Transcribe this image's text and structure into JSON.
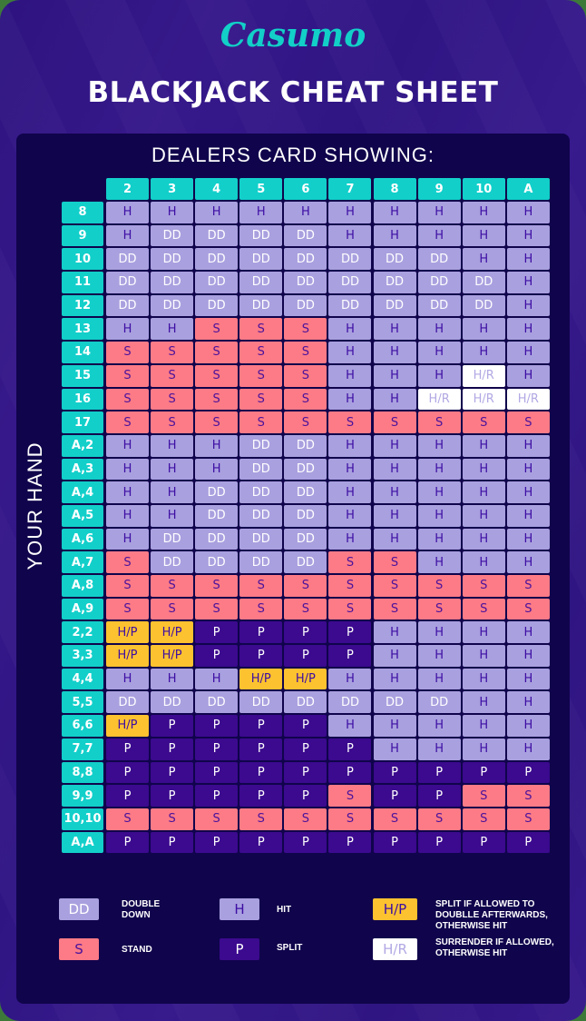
{
  "brand": {
    "logo_text": "Casumo",
    "accent_color": "#12cfca"
  },
  "title": "BLACKJACK CHEAT SHEET",
  "chart": {
    "column_axis_label": "DEALERS CARD SHOWING:",
    "row_axis_label": "YOUR HAND",
    "dealer_cards": [
      "2",
      "3",
      "4",
      "5",
      "6",
      "7",
      "8",
      "9",
      "10",
      "A"
    ],
    "rows": [
      {
        "hand": "8",
        "actions": [
          "H",
          "H",
          "H",
          "H",
          "H",
          "H",
          "H",
          "H",
          "H",
          "H"
        ]
      },
      {
        "hand": "9",
        "actions": [
          "H",
          "DD",
          "DD",
          "DD",
          "DD",
          "H",
          "H",
          "H",
          "H",
          "H"
        ]
      },
      {
        "hand": "10",
        "actions": [
          "DD",
          "DD",
          "DD",
          "DD",
          "DD",
          "DD",
          "DD",
          "DD",
          "H",
          "H"
        ]
      },
      {
        "hand": "11",
        "actions": [
          "DD",
          "DD",
          "DD",
          "DD",
          "DD",
          "DD",
          "DD",
          "DD",
          "DD",
          "H"
        ]
      },
      {
        "hand": "12",
        "actions": [
          "DD",
          "DD",
          "DD",
          "DD",
          "DD",
          "DD",
          "DD",
          "DD",
          "DD",
          "H"
        ]
      },
      {
        "hand": "13",
        "actions": [
          "H",
          "H",
          "S",
          "S",
          "S",
          "H",
          "H",
          "H",
          "H",
          "H"
        ]
      },
      {
        "hand": "14",
        "actions": [
          "S",
          "S",
          "S",
          "S",
          "S",
          "H",
          "H",
          "H",
          "H",
          "H"
        ]
      },
      {
        "hand": "15",
        "actions": [
          "S",
          "S",
          "S",
          "S",
          "S",
          "H",
          "H",
          "H",
          "H/R",
          "H"
        ]
      },
      {
        "hand": "16",
        "actions": [
          "S",
          "S",
          "S",
          "S",
          "S",
          "H",
          "H",
          "H/R",
          "H/R",
          "H/R"
        ]
      },
      {
        "hand": "17",
        "actions": [
          "S",
          "S",
          "S",
          "S",
          "S",
          "S",
          "S",
          "S",
          "S",
          "S"
        ]
      },
      {
        "hand": "A,2",
        "actions": [
          "H",
          "H",
          "H",
          "DD",
          "DD",
          "H",
          "H",
          "H",
          "H",
          "H"
        ]
      },
      {
        "hand": "A,3",
        "actions": [
          "H",
          "H",
          "H",
          "DD",
          "DD",
          "H",
          "H",
          "H",
          "H",
          "H"
        ]
      },
      {
        "hand": "A,4",
        "actions": [
          "H",
          "H",
          "DD",
          "DD",
          "DD",
          "H",
          "H",
          "H",
          "H",
          "H"
        ]
      },
      {
        "hand": "A,5",
        "actions": [
          "H",
          "H",
          "DD",
          "DD",
          "DD",
          "H",
          "H",
          "H",
          "H",
          "H"
        ]
      },
      {
        "hand": "A,6",
        "actions": [
          "H",
          "DD",
          "DD",
          "DD",
          "DD",
          "H",
          "H",
          "H",
          "H",
          "H"
        ]
      },
      {
        "hand": "A,7",
        "actions": [
          "S",
          "DD",
          "DD",
          "DD",
          "DD",
          "S",
          "S",
          "H",
          "H",
          "H"
        ]
      },
      {
        "hand": "A,8",
        "actions": [
          "S",
          "S",
          "S",
          "S",
          "S",
          "S",
          "S",
          "S",
          "S",
          "S"
        ]
      },
      {
        "hand": "A,9",
        "actions": [
          "S",
          "S",
          "S",
          "S",
          "S",
          "S",
          "S",
          "S",
          "S",
          "S"
        ]
      },
      {
        "hand": "2,2",
        "actions": [
          "H/P",
          "H/P",
          "P",
          "P",
          "P",
          "P",
          "H",
          "H",
          "H",
          "H"
        ]
      },
      {
        "hand": "3,3",
        "actions": [
          "H/P",
          "H/P",
          "P",
          "P",
          "P",
          "P",
          "H",
          "H",
          "H",
          "H"
        ]
      },
      {
        "hand": "4,4",
        "actions": [
          "H",
          "H",
          "H",
          "H/P",
          "H/P",
          "H",
          "H",
          "H",
          "H",
          "H"
        ]
      },
      {
        "hand": "5,5",
        "actions": [
          "DD",
          "DD",
          "DD",
          "DD",
          "DD",
          "DD",
          "DD",
          "DD",
          "H",
          "H"
        ]
      },
      {
        "hand": "6,6",
        "actions": [
          "H/P",
          "P",
          "P",
          "P",
          "P",
          "H",
          "H",
          "H",
          "H",
          "H"
        ]
      },
      {
        "hand": "7,7",
        "actions": [
          "P",
          "P",
          "P",
          "P",
          "P",
          "P",
          "H",
          "H",
          "H",
          "H"
        ]
      },
      {
        "hand": "8,8",
        "actions": [
          "P",
          "P",
          "P",
          "P",
          "P",
          "P",
          "P",
          "P",
          "P",
          "P"
        ]
      },
      {
        "hand": "9,9",
        "actions": [
          "P",
          "P",
          "P",
          "P",
          "P",
          "S",
          "P",
          "P",
          "S",
          "S"
        ]
      },
      {
        "hand": "10,10",
        "actions": [
          "S",
          "S",
          "S",
          "S",
          "S",
          "S",
          "S",
          "S",
          "S",
          "S"
        ]
      },
      {
        "hand": "A,A",
        "actions": [
          "P",
          "P",
          "P",
          "P",
          "P",
          "P",
          "P",
          "P",
          "P",
          "P"
        ]
      }
    ]
  },
  "legend": [
    {
      "code": "DD",
      "label_lines": [
        "DOUBLE",
        "DOWN"
      ],
      "color": "#a9a0df"
    },
    {
      "code": "S",
      "label_lines": [
        "STAND"
      ],
      "color": "#fd7b86"
    },
    {
      "code": "H",
      "label_lines": [
        "HIT"
      ],
      "color": "#a9a0df"
    },
    {
      "code": "P",
      "label_lines": [
        "SPLIT"
      ],
      "color": "#3b0a8e"
    },
    {
      "code": "H/P",
      "label_lines": [
        "SPLIT IF ALLOWED TO",
        "DOUBLLE AFTERWARDS,",
        "OTHERWISE HIT"
      ],
      "color": "#fdc22f"
    },
    {
      "code": "H/R",
      "label_lines": [
        "SURRENDER IF ALLOWED,",
        "OTHERWISE HIT"
      ],
      "color": "#ffffff"
    }
  ],
  "chart_data": {
    "type": "table",
    "title": "BLACKJACK CHEAT SHEET",
    "xlabel": "DEALERS CARD SHOWING:",
    "ylabel": "YOUR HAND",
    "columns": [
      "2",
      "3",
      "4",
      "5",
      "6",
      "7",
      "8",
      "9",
      "10",
      "A"
    ],
    "row_labels": [
      "8",
      "9",
      "10",
      "11",
      "12",
      "13",
      "14",
      "15",
      "16",
      "17",
      "A,2",
      "A,3",
      "A,4",
      "A,5",
      "A,6",
      "A,7",
      "A,8",
      "A,9",
      "2,2",
      "3,3",
      "4,4",
      "5,5",
      "6,6",
      "7,7",
      "8,8",
      "9,9",
      "10,10",
      "A,A"
    ],
    "legend": {
      "DD": "DOUBLE DOWN",
      "H": "HIT",
      "S": "STAND",
      "P": "SPLIT",
      "H/P": "SPLIT IF ALLOWED TO DOUBLLE AFTERWARDS, OTHERWISE HIT",
      "H/R": "SURRENDER IF ALLOWED, OTHERWISE HIT"
    }
  }
}
